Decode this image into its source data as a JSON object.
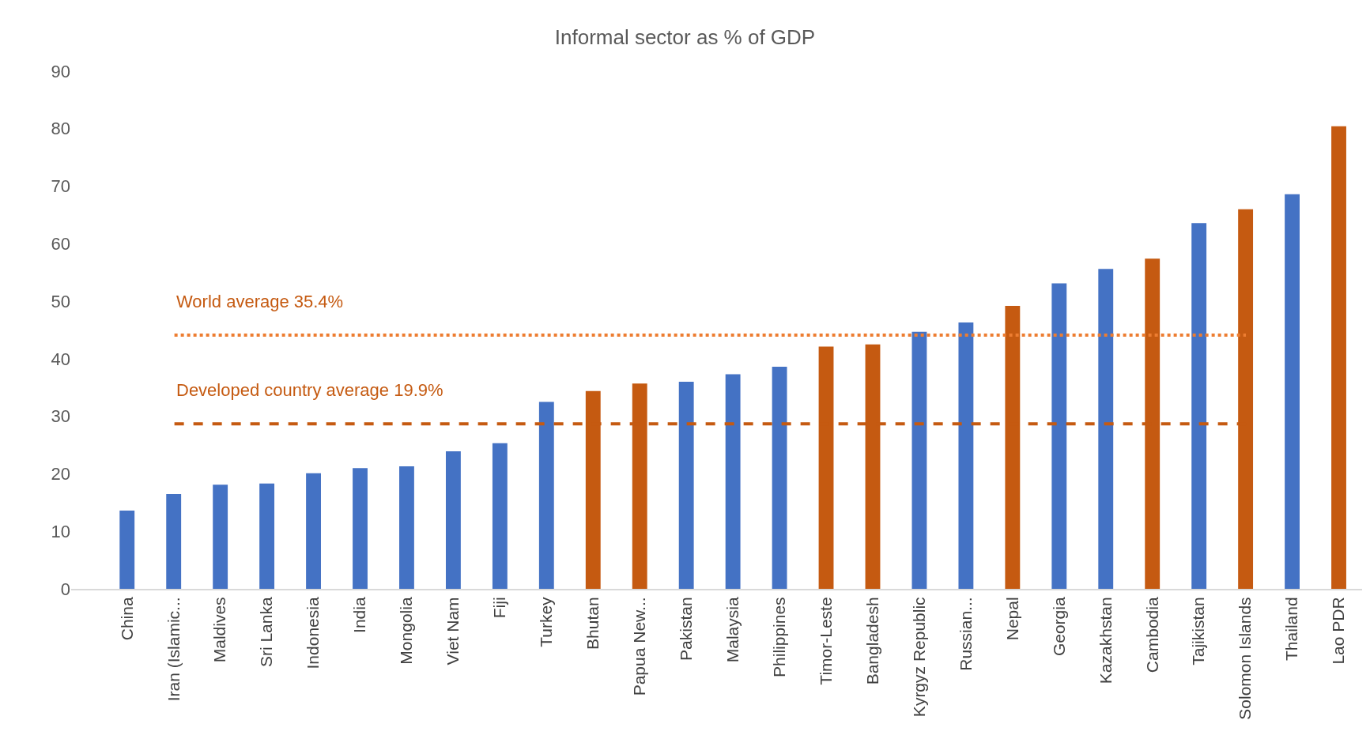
{
  "chart_data": {
    "type": "bar",
    "title": "Informal sector as % of GDP",
    "categories": [
      "China",
      "Iran (Islamic...",
      "Maldives",
      "Sri Lanka",
      "Indonesia",
      "India",
      "Mongolia",
      "Viet Nam",
      "Fiji",
      "Turkey",
      "Bhutan",
      "Papua New...",
      "Pakistan",
      "Malaysia",
      "Philippines",
      "Timor-Leste",
      "Bangladesh",
      "Kyrgyz Republic",
      "Russian...",
      "Nepal",
      "Georgia",
      "Kazakhstan",
      "Cambodia",
      "Tajikistan",
      "Solomon Islands",
      "Thailand",
      "Lao PDR"
    ],
    "values": [
      13.6,
      16.5,
      18.1,
      18.3,
      20.1,
      21.0,
      21.3,
      23.9,
      25.3,
      32.5,
      34.4,
      35.7,
      36.0,
      37.3,
      38.6,
      42.1,
      42.5,
      44.7,
      46.3,
      49.2,
      53.1,
      55.6,
      57.4,
      63.6,
      66.0,
      68.6,
      80.4
    ],
    "colors": [
      "#4472c4",
      "#4472c4",
      "#4472c4",
      "#4472c4",
      "#4472c4",
      "#4472c4",
      "#4472c4",
      "#4472c4",
      "#4472c4",
      "#4472c4",
      "#c55a11",
      "#c55a11",
      "#4472c4",
      "#4472c4",
      "#4472c4",
      "#c55a11",
      "#c55a11",
      "#4472c4",
      "#4472c4",
      "#c55a11",
      "#4472c4",
      "#4472c4",
      "#c55a11",
      "#4472c4",
      "#c55a11",
      "#4472c4",
      "#c55a11"
    ],
    "ylim": [
      0,
      90
    ],
    "yticks": [
      0,
      10,
      20,
      30,
      40,
      50,
      60,
      70,
      80,
      90
    ],
    "ref_lines": [
      {
        "axis": "y",
        "value": 44.1,
        "label": "World average 35.4%",
        "color": "#ed7d31",
        "line_style": "dotted"
      },
      {
        "axis": "y",
        "value": 28.7,
        "label": "Developed country average 19.9%",
        "color": "#c55a11",
        "line_style": "dashed"
      }
    ]
  }
}
